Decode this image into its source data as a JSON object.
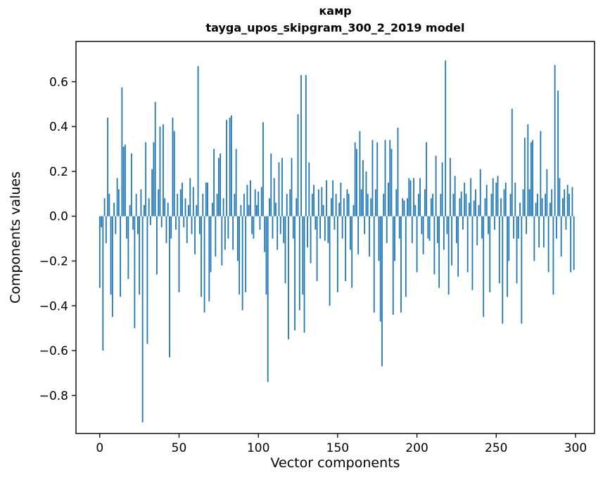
{
  "figure": {
    "background": "#ffffff",
    "text_color": "#000000"
  },
  "chart_data": {
    "type": "bar",
    "title_lines": [
      "камр",
      "tayga_upos_skipgram_300_2_2019 model"
    ],
    "xlabel": "Vector components",
    "ylabel": "Components values",
    "bar_color": "#1f77b4",
    "spine_color": "#000000",
    "grid": false,
    "legend": "none",
    "x_start": 0,
    "xlim": [
      -15,
      312
    ],
    "ylim": [
      -0.97,
      0.78
    ],
    "xticks": [
      0,
      50,
      100,
      150,
      200,
      250,
      300
    ],
    "xtick_labels": [
      "0",
      "50",
      "100",
      "150",
      "200",
      "250",
      "300"
    ],
    "yticks": [
      -0.8,
      -0.6,
      -0.4,
      -0.2,
      0.0,
      0.2,
      0.4,
      0.6
    ],
    "ytick_labels": [
      "−0.8",
      "−0.6",
      "−0.4",
      "−0.2",
      "0.0",
      "0.2",
      "0.4",
      "0.6"
    ],
    "values": [
      -0.32,
      -0.05,
      -0.6,
      0.08,
      -0.12,
      0.44,
      0.1,
      -0.35,
      -0.45,
      0.06,
      -0.08,
      0.17,
      0.12,
      -0.36,
      0.575,
      0.31,
      0.32,
      -0.1,
      -0.28,
      0.05,
      0.28,
      -0.06,
      -0.5,
      0.1,
      -0.08,
      -0.35,
      0.12,
      -0.92,
      0.05,
      0.33,
      -0.57,
      0.08,
      -0.04,
      0.21,
      0.33,
      0.51,
      -0.26,
      0.12,
      0.4,
      -0.05,
      0.41,
      0.08,
      -0.12,
      0.06,
      -0.63,
      -0.1,
      0.44,
      0.38,
      -0.06,
      0.1,
      -0.34,
      0.12,
      0.15,
      -0.05,
      0.08,
      -0.12,
      0.05,
      0.17,
      -0.08,
      0.13,
      -0.17,
      0.05,
      0.67,
      -0.08,
      -0.36,
      0.1,
      -0.43,
      0.15,
      0.15,
      -0.38,
      -0.25,
      0.06,
      0.3,
      -0.18,
      0.1,
      0.26,
      0.28,
      -0.22,
      0.08,
      -0.15,
      0.43,
      -0.1,
      0.44,
      0.45,
      -0.15,
      0.1,
      0.3,
      -0.2,
      -0.35,
      0.05,
      -0.42,
      0.1,
      -0.34,
      0.14,
      0.05,
      0.16,
      -0.08,
      -0.1,
      0.12,
      0.05,
      0.11,
      -0.06,
      0.13,
      0.42,
      -0.16,
      -0.35,
      -0.74,
      0.08,
      0.28,
      -0.1,
      0.17,
      0.06,
      -0.15,
      0.24,
      -0.08,
      0.26,
      -0.12,
      -0.3,
      0.1,
      -0.55,
      0.12,
      0.26,
      -0.1,
      -0.51,
      0.08,
      0.455,
      -0.42,
      0.63,
      -0.35,
      -0.52,
      0.63,
      -0.14,
      0.24,
      -0.21,
      0.1,
      0.14,
      -0.06,
      -0.29,
      0.12,
      -0.1,
      0.13,
      0.05,
      -0.11,
      0.16,
      -0.12,
      -0.4,
      0.08,
      0.16,
      -0.06,
      0.1,
      -0.34,
      0.06,
      0.15,
      -0.1,
      0.08,
      -0.29,
      0.12,
      0.1,
      -0.15,
      -0.32,
      0.05,
      0.33,
      0.3,
      -0.17,
      0.38,
      0.12,
      0.25,
      -0.08,
      0.2,
      0.1,
      -0.18,
      0.08,
      0.34,
      -0.43,
      0.12,
      0.33,
      -0.2,
      -0.47,
      -0.67,
      0.1,
      0.34,
      -0.12,
      0.15,
      0.34,
      0.3,
      -0.44,
      -0.2,
      0.12,
      0.395,
      -0.1,
      -0.43,
      0.08,
      0.07,
      -0.36,
      0.08,
      0.17,
      0.16,
      -0.12,
      0.17,
      0.05,
      -0.25,
      0.1,
      0.17,
      -0.08,
      -0.17,
      0.12,
      0.33,
      -0.1,
      -0.11,
      0.08,
      0.1,
      -0.26,
      0.27,
      -0.12,
      -0.32,
      0.1,
      0.24,
      -0.15,
      0.695,
      -0.08,
      -0.35,
      0.26,
      -0.22,
      0.1,
      0.18,
      -0.12,
      -0.27,
      0.08,
      0.11,
      -0.06,
      0.15,
      0.1,
      -0.25,
      0.06,
      0.17,
      -0.33,
      0.07,
      0.12,
      -0.13,
      0.05,
      0.21,
      -0.1,
      -0.45,
      0.08,
      0.14,
      -0.08,
      -0.34,
      0.1,
      0.17,
      -0.06,
      0.15,
      0.18,
      -0.3,
      0.08,
      -0.48,
      0.12,
      0.15,
      -0.36,
      -0.2,
      0.1,
      0.48,
      -0.1,
      0.15,
      -0.3,
      -0.1,
      0.06,
      -0.48,
      0.12,
      0.35,
      -0.08,
      0.41,
      0.12,
      0.33,
      0.34,
      -0.2,
      0.06,
      0.1,
      -0.14,
      0.38,
      0.08,
      -0.14,
      0.1,
      0.21,
      -0.25,
      0.06,
      0.12,
      -0.35,
      0.675,
      -0.1,
      0.56,
      0.17,
      -0.18,
      0.08,
      0.12,
      -0.06,
      0.14,
      0.1,
      -0.25,
      0.13,
      -0.24
    ]
  }
}
